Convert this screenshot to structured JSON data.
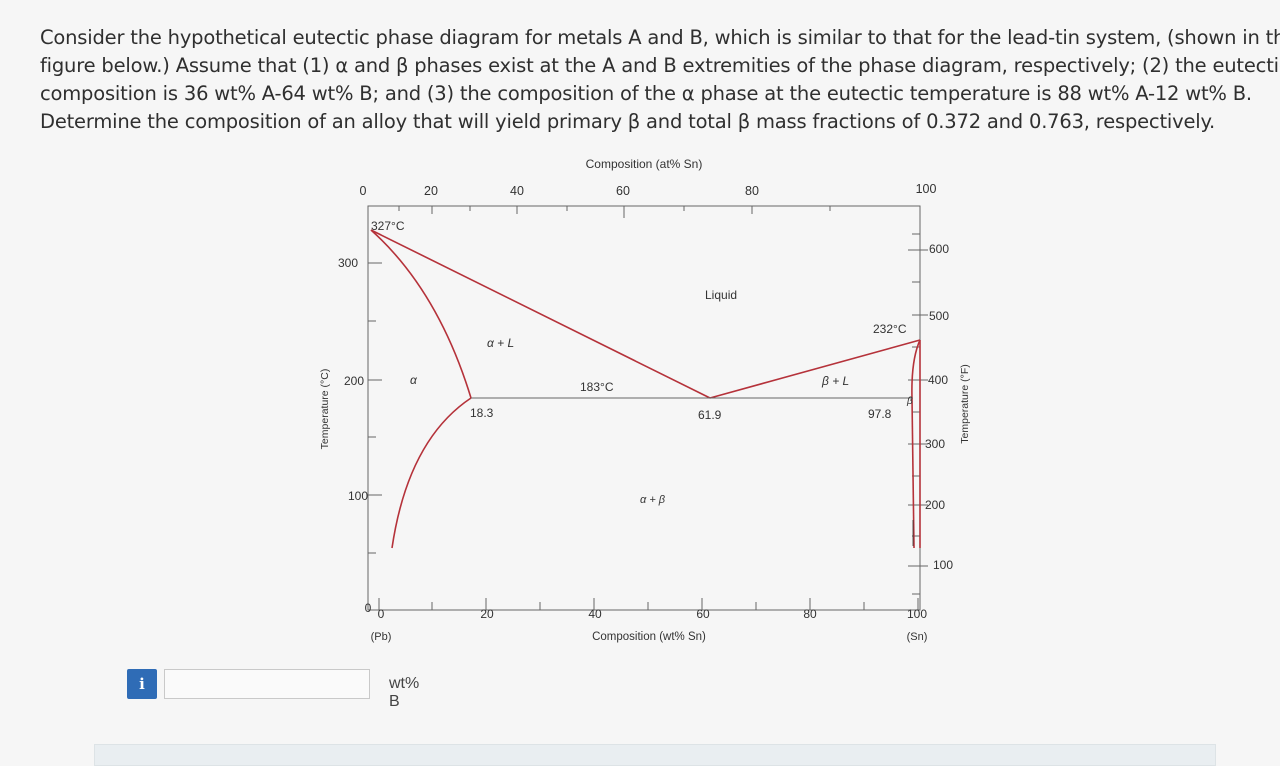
{
  "question": {
    "lines": [
      "Consider the hypothetical eutectic phase diagram for metals A and B, which is similar to that for the lead-tin system, (shown in the",
      "figure below.) Assume that (1) α and β phases exist at the A and B extremities of the phase diagram, respectively; (2) the eutectic",
      "composition is 36 wt% A-64 wt% B; and (3) the composition of the α phase at the eutectic temperature is 88 wt% A-12 wt% B.",
      "Determine the composition of an alloy that will yield primary β and total β mass fractions of 0.372 and 0.763, respectively."
    ]
  },
  "diagram": {
    "top_axis_title": "Composition (at% Sn)",
    "top_ticks": [
      "0",
      "20",
      "40",
      "60",
      "80",
      "100"
    ],
    "bottom_axis_title": "Composition (wt% Sn)",
    "bottom_ticks": [
      "0",
      "20",
      "40",
      "60",
      "80",
      "100"
    ],
    "bottom_left_label": "(Pb)",
    "bottom_right_label": "(Sn)",
    "left_axis_title": "Temperature (°C)",
    "left_ticks": [
      "0",
      "100",
      "200",
      "300"
    ],
    "right_axis_title": "Temperature (°F)",
    "right_ticks": [
      "100",
      "200",
      "300",
      "400",
      "500",
      "600"
    ],
    "labels": {
      "pb_melt": "327°C",
      "sn_melt": "232°C",
      "eutectic_temp": "183°C",
      "alpha_limit": "18.3",
      "eutectic_comp": "61.9",
      "beta_limit": "97.8",
      "liquid": "Liquid",
      "alpha_plus_liquid": "α + L",
      "beta_plus_liquid": "β + L",
      "alpha_plus_beta": "α + β",
      "alpha": "α",
      "beta": "β"
    },
    "line_color": "#b5323a"
  },
  "answer": {
    "info_icon": "i",
    "input_value": "",
    "input_placeholder": "",
    "unit": "wt% B"
  }
}
